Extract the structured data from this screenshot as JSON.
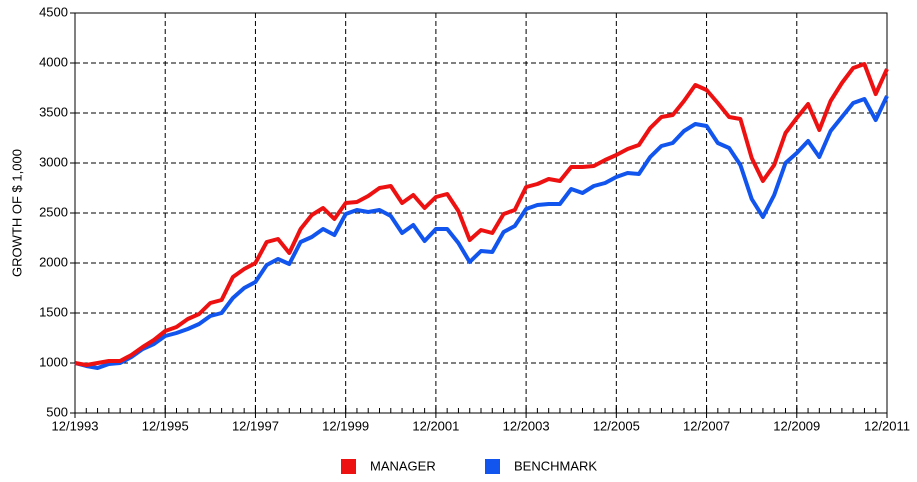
{
  "chart_data": {
    "type": "line",
    "y_label": "GROWTH OF $ 1,000",
    "x": [
      "12/1993",
      "03/1994",
      "06/1994",
      "09/1994",
      "12/1994",
      "03/1995",
      "06/1995",
      "09/1995",
      "12/1995",
      "03/1996",
      "06/1996",
      "09/1996",
      "12/1996",
      "03/1997",
      "06/1997",
      "09/1997",
      "12/1997",
      "03/1998",
      "06/1998",
      "09/1998",
      "12/1998",
      "03/1999",
      "06/1999",
      "09/1999",
      "12/1999",
      "03/2000",
      "06/2000",
      "09/2000",
      "12/2000",
      "03/2001",
      "06/2001",
      "09/2001",
      "12/2001",
      "03/2002",
      "06/2002",
      "09/2002",
      "12/2002",
      "03/2003",
      "06/2003",
      "09/2003",
      "12/2003",
      "03/2004",
      "06/2004",
      "09/2004",
      "12/2004",
      "03/2005",
      "06/2005",
      "09/2005",
      "12/2005",
      "03/2006",
      "06/2006",
      "09/2006",
      "12/2006",
      "03/2007",
      "06/2007",
      "09/2007",
      "12/2007",
      "03/2008",
      "06/2008",
      "09/2008",
      "12/2008",
      "03/2009",
      "06/2009",
      "09/2009",
      "12/2009",
      "03/2010",
      "06/2010",
      "09/2010",
      "12/2010",
      "03/2011",
      "06/2011",
      "09/2011",
      "12/2011"
    ],
    "series": [
      {
        "name": "MANAGER",
        "color": "#ee1111",
        "values": [
          1000,
          980,
          1000,
          1020,
          1020,
          1080,
          1160,
          1230,
          1320,
          1360,
          1440,
          1490,
          1600,
          1630,
          1860,
          1940,
          2000,
          2210,
          2240,
          2100,
          2340,
          2480,
          2550,
          2440,
          2600,
          2610,
          2670,
          2750,
          2770,
          2600,
          2680,
          2550,
          2660,
          2690,
          2520,
          2230,
          2330,
          2300,
          2490,
          2530,
          2760,
          2790,
          2840,
          2820,
          2960,
          2960,
          2970,
          3030,
          3080,
          3140,
          3180,
          3350,
          3460,
          3480,
          3620,
          3780,
          3730,
          3600,
          3460,
          3440,
          3050,
          2820,
          2980,
          3300,
          3450,
          3590,
          3330,
          3620,
          3800,
          3950,
          3990,
          3690,
          3940
        ]
      },
      {
        "name": "BENCHMARK",
        "color": "#1155ee",
        "values": [
          1000,
          970,
          950,
          990,
          1000,
          1060,
          1140,
          1190,
          1270,
          1300,
          1340,
          1390,
          1470,
          1500,
          1650,
          1750,
          1810,
          1980,
          2040,
          1990,
          2210,
          2260,
          2340,
          2280,
          2490,
          2530,
          2510,
          2530,
          2470,
          2300,
          2380,
          2220,
          2340,
          2340,
          2200,
          2010,
          2120,
          2110,
          2310,
          2370,
          2540,
          2580,
          2590,
          2590,
          2740,
          2700,
          2770,
          2800,
          2860,
          2900,
          2890,
          3060,
          3170,
          3200,
          3320,
          3390,
          3370,
          3200,
          3150,
          2980,
          2640,
          2460,
          2680,
          3000,
          3100,
          3220,
          3060,
          3320,
          3460,
          3600,
          3640,
          3430,
          3670
        ]
      }
    ],
    "xticks": [
      "12/1993",
      "12/1995",
      "12/1997",
      "12/1999",
      "12/2001",
      "12/2003",
      "12/2005",
      "12/2007",
      "12/2009",
      "12/2011"
    ],
    "ylim": [
      500,
      4500
    ],
    "yticks": [
      500,
      1000,
      1500,
      2000,
      2500,
      3000,
      3500,
      4000,
      4500
    ],
    "grid": true,
    "legend": "bottom"
  }
}
